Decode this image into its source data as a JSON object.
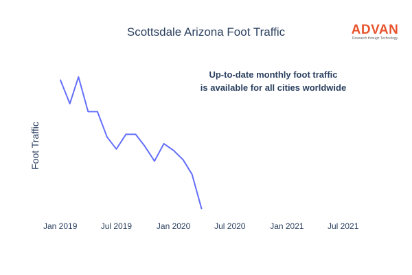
{
  "logo": {
    "text": "ADVAN",
    "tagline": "Research through Technology",
    "color": "#e8542e"
  },
  "annotation": {
    "line1": "Up-to-date monthly foot traffic",
    "line2": "is available for all cities worldwide"
  },
  "chart_data": {
    "type": "line",
    "title": "Scottsdale Arizona Foot Traffic",
    "xlabel": "",
    "ylabel": "Foot Traffic",
    "x": [
      "2019-01",
      "2019-02",
      "2019-03",
      "2019-04",
      "2019-05",
      "2019-06",
      "2019-07",
      "2019-08",
      "2019-09",
      "2019-10",
      "2019-11",
      "2019-12",
      "2020-01",
      "2020-02",
      "2020-03",
      "2020-04"
    ],
    "series": [
      {
        "values": [
          100,
          82,
          102,
          76,
          76,
          57,
          48,
          59,
          59,
          50,
          39,
          52,
          47,
          40,
          29,
          3
        ],
        "color": "#636efa"
      }
    ],
    "xlim": [
      "2018-12-15",
      "2021-08-15"
    ],
    "ylim": [
      0,
      104
    ],
    "xticks": [
      {
        "label": "Jan 2019",
        "date": "2019-01-01"
      },
      {
        "label": "Jul 2019",
        "date": "2019-07-01"
      },
      {
        "label": "Jan 2020",
        "date": "2020-01-01"
      },
      {
        "label": "Jul 2020",
        "date": "2020-07-01"
      },
      {
        "label": "Jan 2021",
        "date": "2021-01-01"
      },
      {
        "label": "Jul 2021",
        "date": "2021-07-01"
      }
    ],
    "grid": false,
    "yticks_visible": false,
    "legend": "none"
  }
}
